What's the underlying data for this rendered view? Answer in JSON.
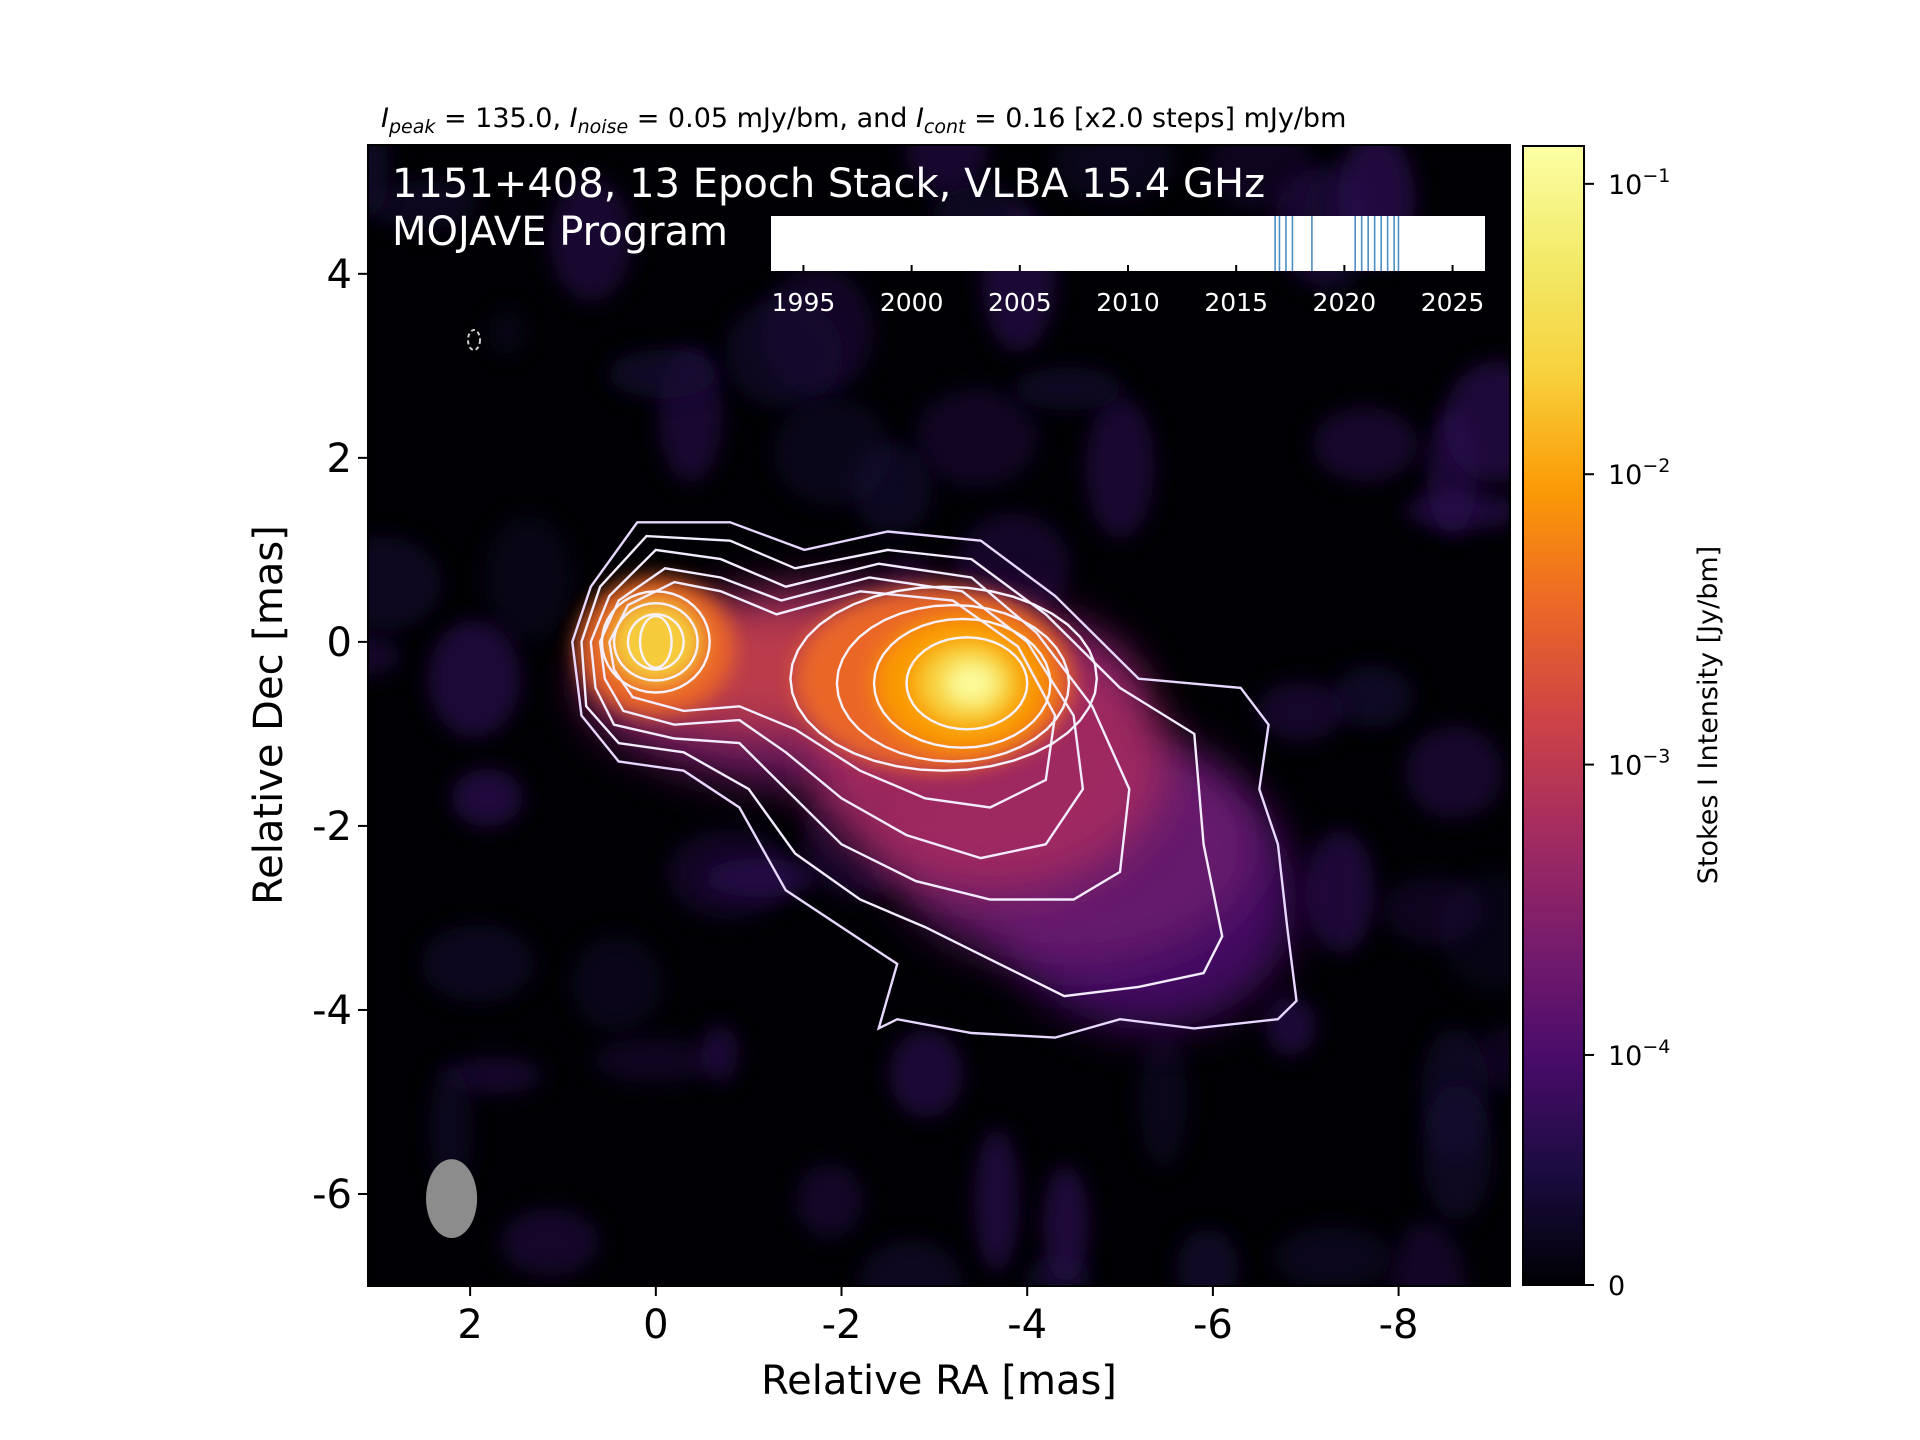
{
  "figure": {
    "header_text": "I_peak = 135.0, I_noise = 0.05 mJy/bm, and I_cont = 0.16 [x2.0 steps] mJy/bm",
    "header_parts": {
      "peak_sym": "I",
      "peak_sub": "peak",
      "peak_text": " = 135.0, ",
      "noise_sym": "I",
      "noise_sub": "noise",
      "noise_text": " = 0.05 mJy/bm, and ",
      "cont_sym": "I",
      "cont_sub": "cont",
      "cont_text": " = 0.16 [x2.0 steps] mJy/bm"
    },
    "overlay_line1": "1151+408, 13 Epoch Stack, VLBA 15.4 GHz",
    "overlay_line2": "MOJAVE Program"
  },
  "colors": {
    "image_background": "#000004",
    "contour": "#f3ecff",
    "beam": "#8c8c8c",
    "epoch_line": "#4c8fc2",
    "colormap": "inferno"
  },
  "chart_data": {
    "type": "heatmap",
    "xlabel": "Relative RA [mas]",
    "ylabel": "Relative Dec [mas]",
    "xlim": [
      3.1,
      -9.2
    ],
    "ylim": [
      -7.0,
      5.4
    ],
    "x_ticks": [
      2,
      0,
      -2,
      -4,
      -6,
      -8
    ],
    "x_tick_labels": [
      "2",
      "0",
      "-2",
      "-4",
      "-6",
      "-8"
    ],
    "y_ticks": [
      4,
      2,
      0,
      -2,
      -4,
      -6
    ],
    "y_tick_labels": [
      "4",
      "2",
      "0",
      "-2",
      "-4",
      "-6"
    ],
    "colorbar": {
      "label": "Stokes I Intensity [Jy/bm]",
      "scale": "log",
      "range": [
        0,
        0.135
      ],
      "ticks": [
        0.1,
        0.01,
        0.001,
        0.0001,
        0
      ],
      "tick_labels": [
        {
          "base": "10",
          "exp": "−1"
        },
        {
          "base": "10",
          "exp": "−2"
        },
        {
          "base": "10",
          "exp": "−3"
        },
        {
          "base": "10",
          "exp": "−4"
        },
        {
          "base": "0",
          "exp": ""
        }
      ]
    },
    "peak_mJy_per_beam": 135.0,
    "noise_mJy_per_beam": 0.05,
    "lowest_contour_mJy_per_beam": 0.16,
    "contour_step_factor": 2.0,
    "components": [
      {
        "ra": 0.0,
        "dec": 0.0,
        "peak_jy": 0.055
      },
      {
        "ra": -3.35,
        "dec": -0.45,
        "peak_jy": 0.135
      }
    ],
    "beam": {
      "ra": 2.2,
      "dec": -6.05,
      "major_mas": 0.85,
      "minor_mas": 0.55,
      "pa_deg": 0
    },
    "epoch_timeline": {
      "xlim": [
        1993.5,
        2026.5
      ],
      "ticks": [
        1995,
        2000,
        2005,
        2010,
        2015,
        2020,
        2025
      ],
      "tick_labels": [
        "1995",
        "2000",
        "2005",
        "2010",
        "2015",
        "2020",
        "2025"
      ],
      "epochs": [
        2016.8,
        2017.0,
        2017.3,
        2017.6,
        2018.5,
        2020.5,
        2020.8,
        2021.1,
        2021.4,
        2021.7,
        2022.0,
        2022.3,
        2022.5
      ]
    }
  }
}
